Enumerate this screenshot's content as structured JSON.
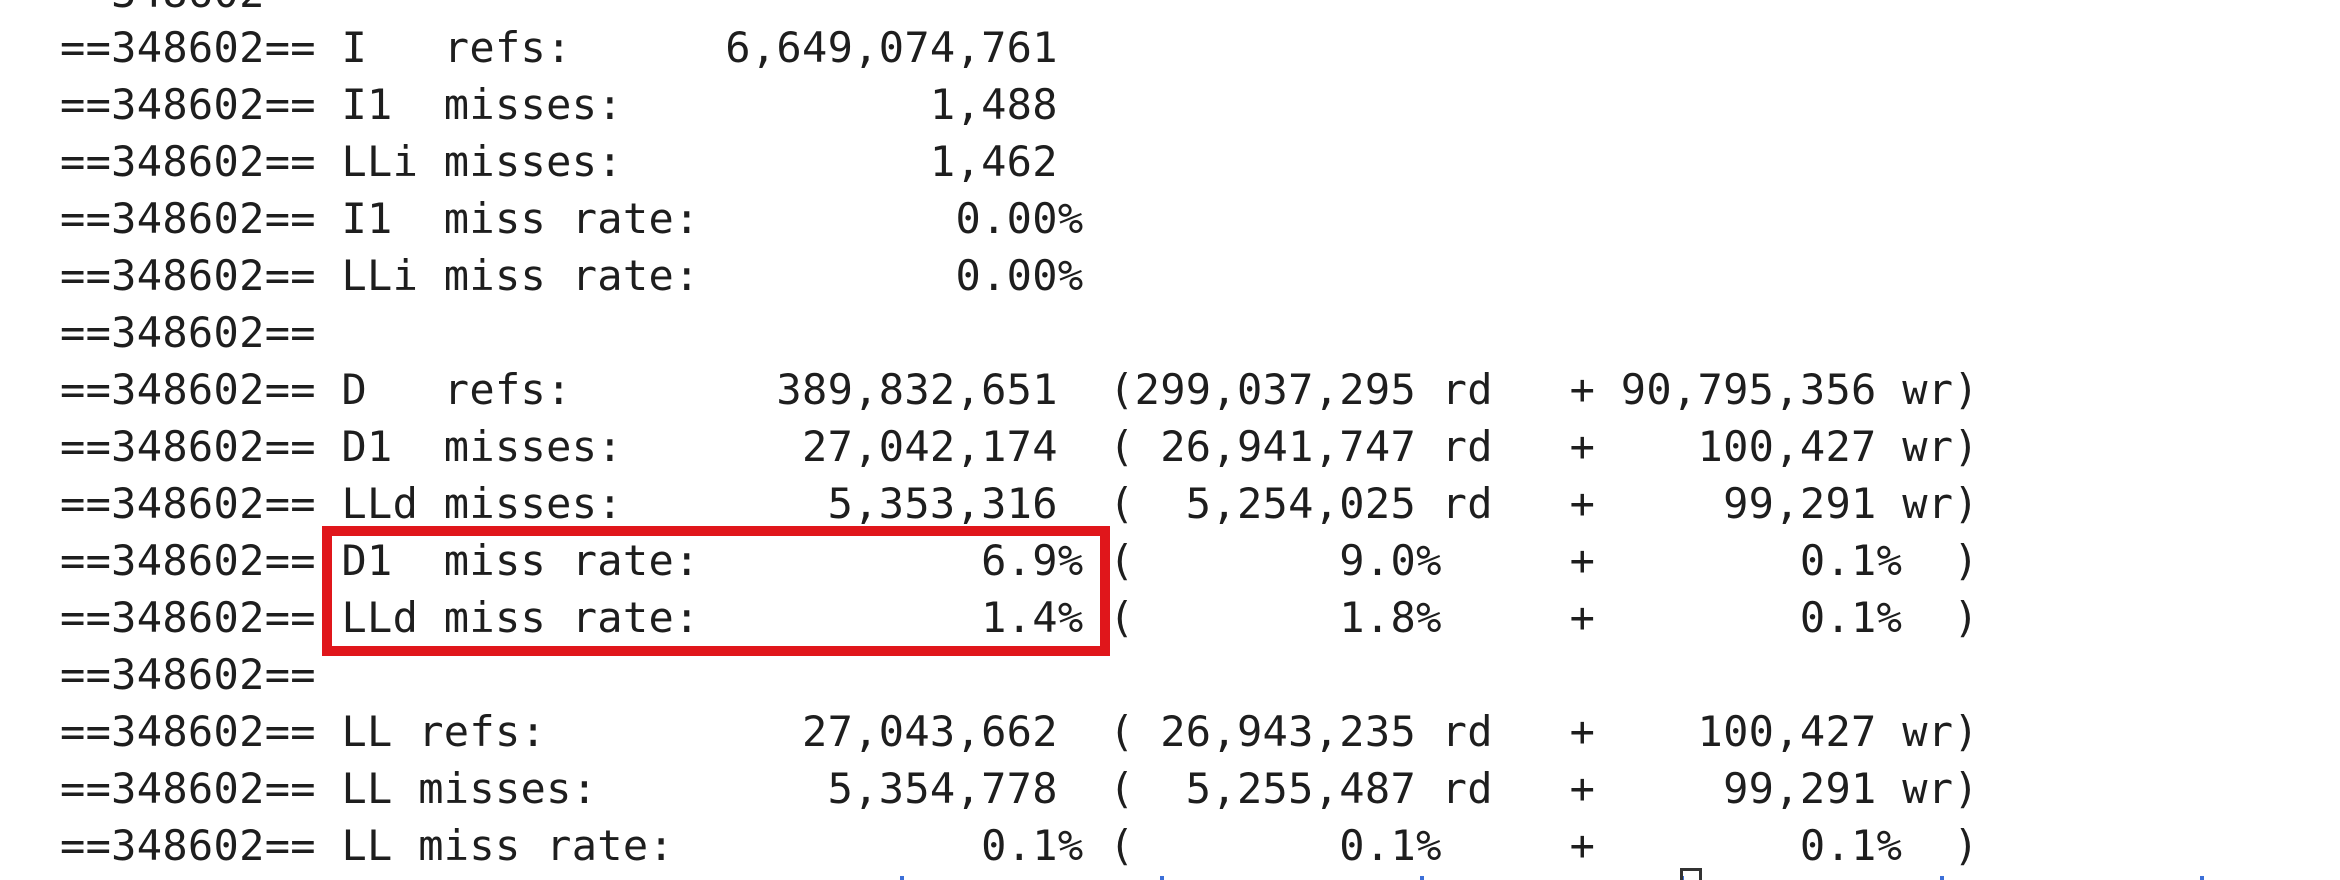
{
  "window": {
    "app_type": "terminal",
    "pid": "==348602=="
  },
  "top_fragment": "  348602",
  "lines": [
    "==348602== I   refs:      6,649,074,761",
    "==348602== I1  misses:            1,488",
    "==348602== LLi misses:            1,462",
    "==348602== I1  miss rate:          0.00%",
    "==348602== LLi miss rate:          0.00%",
    "==348602==",
    "==348602== D   refs:        389,832,651  (299,037,295 rd   + 90,795,356 wr)",
    "==348602== D1  misses:       27,042,174  ( 26,941,747 rd   +    100,427 wr)",
    "==348602== LLd misses:        5,353,316  (  5,254,025 rd   +     99,291 wr)",
    "==348602== D1  miss rate:           6.9% (        9.0%     +        0.1%  )",
    "==348602== LLd miss rate:           1.4% (        1.8%     +        0.1%  )",
    "==348602==",
    "==348602== LL refs:          27,043,662  ( 26,943,235 rd   +    100,427 wr)",
    "==348602== LL misses:         5,354,778  (  5,255,487 rd   +     99,291 wr)",
    "==348602== LL miss rate:            0.1% (        0.1%     +        0.1%  )"
  ],
  "highlight": {
    "label": "D1 / LLd miss rate",
    "color": "#e0161b"
  },
  "colors": {
    "background": "#ffffff",
    "text": "#1e1e1e",
    "highlight_border": "#e0161b"
  }
}
